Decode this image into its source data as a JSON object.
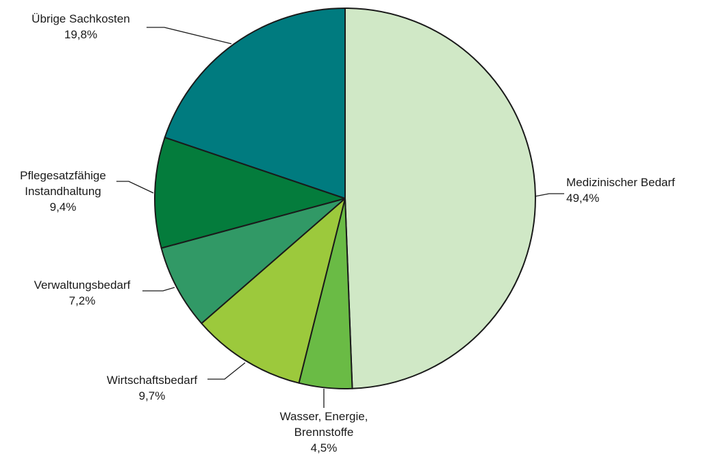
{
  "chart_data": {
    "type": "pie",
    "unit": "%",
    "slices": [
      {
        "label": [
          "Medizinischer Bedarf"
        ],
        "value": 49.4,
        "value_label": "49,4%",
        "color": "#d0e8c6"
      },
      {
        "label": [
          "Wasser, Energie,",
          "Brennstoffe"
        ],
        "value": 4.5,
        "value_label": "4,5%",
        "color": "#6abb45"
      },
      {
        "label": [
          "Wirtschaftsbedarf"
        ],
        "value": 9.7,
        "value_label": "9,7%",
        "color": "#9cc93c"
      },
      {
        "label": [
          "Verwaltungsbedarf"
        ],
        "value": 7.2,
        "value_label": "7,2%",
        "color": "#319966"
      },
      {
        "label": [
          "Pflegesatzfähige",
          "Instandhaltung"
        ],
        "value": 9.4,
        "value_label": "9,4%",
        "color": "#047c3c"
      },
      {
        "label": [
          "Übrige Sachkosten"
        ],
        "value": 19.8,
        "value_label": "19,8%",
        "color": "#007b7f"
      }
    ]
  }
}
